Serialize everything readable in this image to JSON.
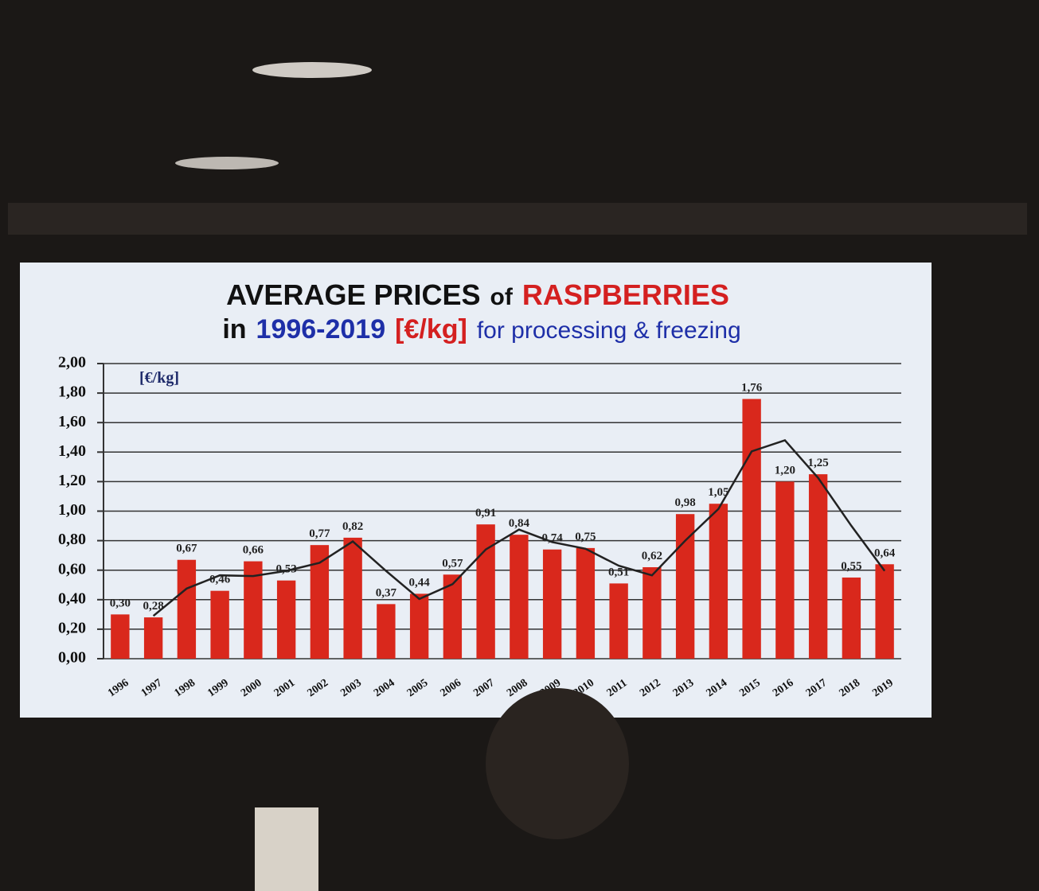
{
  "chart_data": {
    "type": "bar",
    "title_line1": [
      {
        "text": "AVERAGE PRICES",
        "color": "#111111"
      },
      {
        "text": "of",
        "color": "#111111"
      },
      {
        "text": "RASPBERRIES",
        "color": "#d42020"
      }
    ],
    "title_line2": [
      {
        "text": "in",
        "color": "#111111"
      },
      {
        "text": "1996-2019",
        "color": "#1e2fa8"
      },
      {
        "text": "[€/kg]",
        "color": "#d42020"
      },
      {
        "text": "for processing & freezing",
        "color": "#1e2fa8"
      }
    ],
    "unit_label": "[€/kg]",
    "categories": [
      "1996",
      "1997",
      "1998",
      "1999",
      "2000",
      "2001",
      "2002",
      "2003",
      "2004",
      "2005",
      "2006",
      "2007",
      "2008",
      "2009",
      "2010",
      "2011",
      "2012",
      "2013",
      "2014",
      "2015",
      "2016",
      "2017",
      "2018",
      "2019"
    ],
    "values": [
      0.3,
      0.28,
      0.67,
      0.46,
      0.66,
      0.53,
      0.77,
      0.82,
      0.37,
      0.44,
      0.57,
      0.91,
      0.84,
      0.74,
      0.75,
      0.51,
      0.62,
      0.98,
      1.05,
      1.76,
      1.2,
      1.25,
      0.55,
      0.64
    ],
    "value_labels": [
      "0,30",
      "0,28",
      "0,67",
      "0,46",
      "0,66",
      "0,53",
      "0,77",
      "0,82",
      "0,37",
      "0,44",
      "0,57",
      "0,91",
      "0,84",
      "0,74",
      "0,75",
      "0,51",
      "0,62",
      "0,98",
      "1,05",
      "1,76",
      "1,20",
      "1,25",
      "0,55",
      "0,64"
    ],
    "color": "#d9281c",
    "line_values": [
      null,
      0.29,
      0.475,
      0.565,
      0.56,
      0.595,
      0.65,
      0.795,
      0.595,
      0.405,
      0.505,
      0.74,
      0.875,
      0.79,
      0.745,
      0.63,
      0.565,
      0.8,
      1.015,
      1.405,
      1.48,
      1.225,
      0.9,
      0.595
    ],
    "line_color": "#222222",
    "ylim": [
      0,
      2
    ],
    "yticks": [
      {
        "value": 0,
        "label": "0,00"
      },
      {
        "value": 0.2,
        "label": "0,20"
      },
      {
        "value": 0.4,
        "label": "0,40"
      },
      {
        "value": 0.6,
        "label": "0,60"
      },
      {
        "value": 0.8,
        "label": "0,80"
      },
      {
        "value": 1,
        "label": "1,00"
      },
      {
        "value": 1.2,
        "label": "1,20"
      },
      {
        "value": 1.4,
        "label": "1,40"
      },
      {
        "value": 1.6,
        "label": "1,60"
      },
      {
        "value": 1.8,
        "label": "1,80"
      },
      {
        "value": 2,
        "label": "2,00"
      }
    ],
    "grid": true
  }
}
